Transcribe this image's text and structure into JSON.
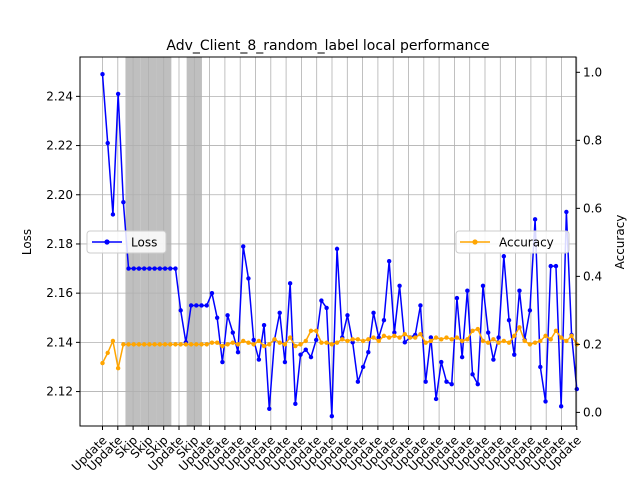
{
  "chart_data": {
    "type": "line",
    "title": "Adv_Client_8_random_label local performance",
    "ylabel_left": "Loss",
    "ylabel_right": "Accuracy",
    "ylim_left": [
      2.106,
      2.256
    ],
    "ylim_right": [
      -0.04,
      1.045
    ],
    "yticks_left": [
      "2.12",
      "2.14",
      "2.16",
      "2.18",
      "2.20",
      "2.22",
      "2.24"
    ],
    "yticks_right": [
      "0.0",
      "0.2",
      "0.4",
      "0.6",
      "0.8",
      "1.0"
    ],
    "grid": true,
    "legend_loss_position": "center-left",
    "legend_accuracy_position": "center-right",
    "skip_rounds": [
      2,
      3,
      4,
      6
    ],
    "x_labels": [
      "Update",
      "Update",
      "Skip",
      "Skip",
      "Skip",
      "Update",
      "Skip",
      "Update",
      "Update",
      "Update",
      "Update",
      "Update",
      "Update",
      "Update",
      "Update",
      "Update",
      "Update",
      "Update",
      "Update",
      "Update",
      "Update",
      "Update",
      "Update",
      "Update",
      "Update",
      "Update",
      "Update",
      "Update",
      "Update",
      "Update",
      "Update",
      "Update"
    ],
    "series": [
      {
        "name": "Loss",
        "color": "#0000ff",
        "axis": "left",
        "values": [
          2.249,
          2.221,
          2.192,
          2.241,
          2.197,
          2.17,
          2.17,
          2.17,
          2.17,
          2.17,
          2.17,
          2.17,
          2.17,
          2.17,
          2.17,
          2.153,
          2.14,
          2.155,
          2.155,
          2.155,
          2.155,
          2.16,
          2.15,
          2.132,
          2.151,
          2.144,
          2.136,
          2.179,
          2.166,
          2.141,
          2.133,
          2.147,
          2.113,
          2.141,
          2.152,
          2.132,
          2.164,
          2.115,
          2.135,
          2.137,
          2.134,
          2.141,
          2.157,
          2.154,
          2.11,
          2.178,
          2.142,
          2.151,
          2.14,
          2.124,
          2.13,
          2.136,
          2.152,
          2.142,
          2.149,
          2.173,
          2.144,
          2.163,
          2.14,
          2.142,
          2.143,
          2.155,
          2.124,
          2.142,
          2.117,
          2.132,
          2.124,
          2.123,
          2.158,
          2.134,
          2.161,
          2.127,
          2.123,
          2.163,
          2.144,
          2.133,
          2.142,
          2.175,
          2.149,
          2.135,
          2.161,
          2.141,
          2.153,
          2.19,
          2.13,
          2.116,
          2.171,
          2.171,
          2.114,
          2.193,
          2.143,
          2.121
        ]
      },
      {
        "name": "Accuracy",
        "color": "#ffa500",
        "axis": "right",
        "values": [
          0.145,
          0.175,
          0.21,
          0.13,
          0.2,
          0.2,
          0.2,
          0.2,
          0.2,
          0.2,
          0.2,
          0.2,
          0.2,
          0.2,
          0.2,
          0.2,
          0.2,
          0.2,
          0.2,
          0.2,
          0.2,
          0.205,
          0.205,
          0.195,
          0.2,
          0.205,
          0.2,
          0.21,
          0.205,
          0.2,
          0.21,
          0.195,
          0.2,
          0.215,
          0.205,
          0.2,
          0.22,
          0.195,
          0.2,
          0.21,
          0.24,
          0.24,
          0.205,
          0.205,
          0.2,
          0.205,
          0.215,
          0.21,
          0.215,
          0.215,
          0.21,
          0.215,
          0.22,
          0.21,
          0.225,
          0.22,
          0.225,
          0.22,
          0.23,
          0.22,
          0.22,
          0.23,
          0.205,
          0.21,
          0.22,
          0.215,
          0.22,
          0.215,
          0.22,
          0.21,
          0.215,
          0.24,
          0.245,
          0.21,
          0.205,
          0.215,
          0.205,
          0.21,
          0.205,
          0.225,
          0.25,
          0.21,
          0.2,
          0.205,
          0.21,
          0.225,
          0.215,
          0.24,
          0.22,
          0.21,
          0.225,
          0.2
        ]
      }
    ]
  }
}
